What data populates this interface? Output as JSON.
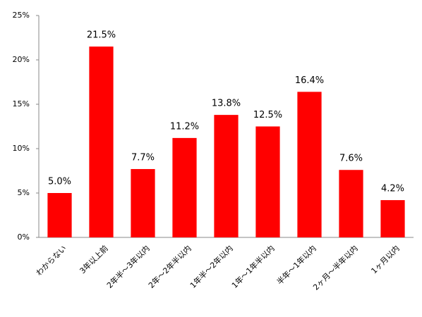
{
  "chart_data": {
    "type": "bar",
    "categories": [
      "わからない",
      "3年以上前",
      "2年半～3年以内",
      "2年～2年半以内",
      "1年半～2年以内",
      "1年～1年半以内",
      "半年～1年以内",
      "2ヶ月～半年以内",
      "1ヶ月以内"
    ],
    "values": [
      5.0,
      21.5,
      7.7,
      11.2,
      13.8,
      12.5,
      16.4,
      7.6,
      4.2
    ],
    "value_labels": [
      "5.0%",
      "21.5%",
      "7.7%",
      "11.2%",
      "13.8%",
      "12.5%",
      "16.4%",
      "7.6%",
      "4.2%"
    ],
    "color": "#ff0000",
    "ylim": [
      0,
      25
    ],
    "yticks": [
      {
        "value": 0,
        "label": "0%"
      },
      {
        "value": 5,
        "label": "5%"
      },
      {
        "value": 10,
        "label": "10%"
      },
      {
        "value": 15,
        "label": "15%"
      },
      {
        "value": 20,
        "label": "20%"
      },
      {
        "value": 25,
        "label": "25%"
      }
    ],
    "grid": false
  }
}
